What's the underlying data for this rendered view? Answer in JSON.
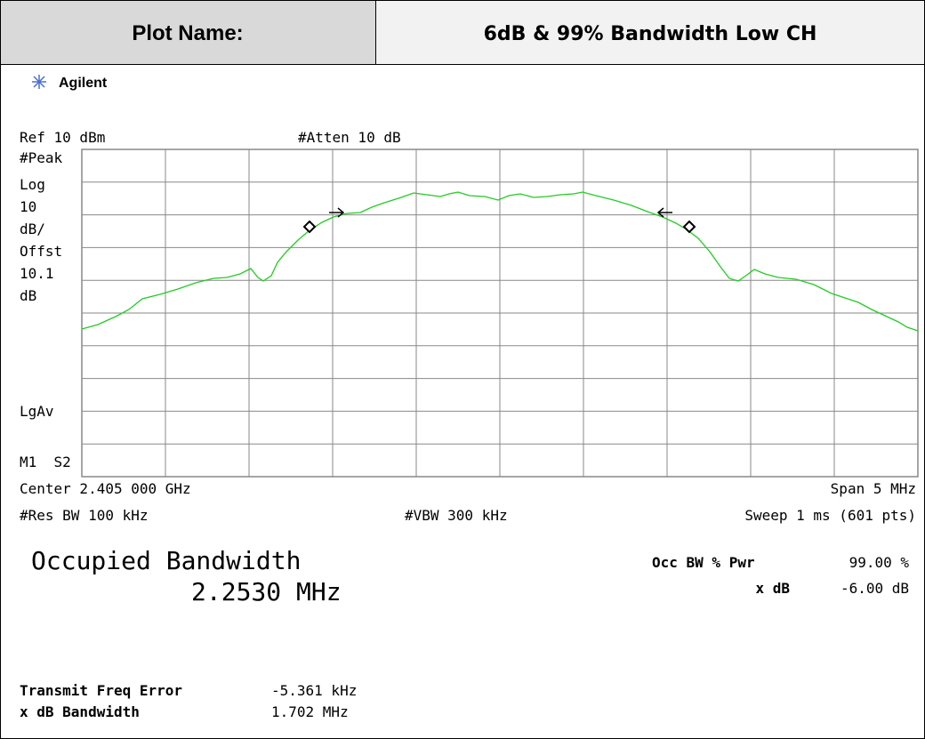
{
  "header": {
    "label": "Plot Name:",
    "title": "6dB & 99% Bandwidth Low CH"
  },
  "brand": "Agilent",
  "screen": {
    "top_left": "Ref 10 dBm",
    "top_mid": "#Atten 10 dB",
    "left_labels": [
      "#Peak",
      "Log",
      "10",
      "dB/",
      "Offst",
      "10.1",
      "dB",
      "LgAv",
      "M1  S2"
    ],
    "center": "Center 2.405 000 GHz",
    "span": "Span 5 MHz",
    "res_bw": "#Res BW 100 kHz",
    "vbw": "#VBW 300 kHz",
    "sweep": "Sweep 1 ms (601 pts)"
  },
  "results": {
    "title": "Occupied Bandwidth",
    "value": "2.2530 MHz",
    "occ_label": "Occ BW % Pwr",
    "occ_value": "99.00 %",
    "xdb_label": "x dB",
    "xdb_value": "-6.00 dB",
    "tfe_label": "Transmit Freq Error",
    "tfe_value": "-5.361 kHz",
    "xbw_label": "x dB Bandwidth",
    "xbw_value": "1.702 MHz"
  }
}
